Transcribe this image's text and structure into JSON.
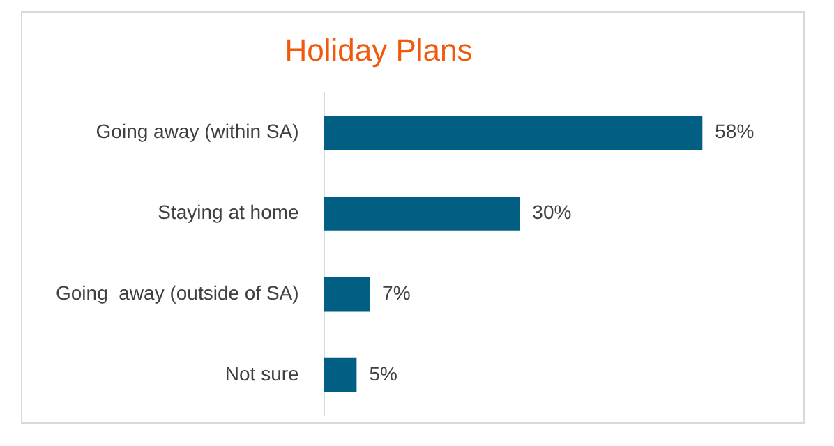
{
  "chart_data": {
    "type": "bar",
    "title": "Holiday Plans",
    "orientation": "horizontal",
    "categories": [
      "Going away (within SA)",
      "Staying at home",
      "Going  away (outside of SA)",
      "Not sure"
    ],
    "values": [
      58,
      30,
      7,
      5
    ],
    "value_labels": [
      "58%",
      "30%",
      "7%",
      "5%"
    ],
    "color": "#005f83"
  }
}
